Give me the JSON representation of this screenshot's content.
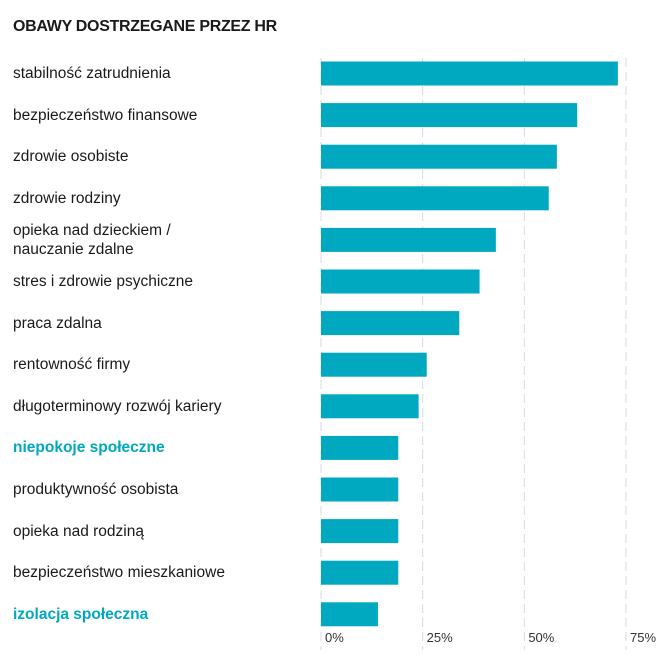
{
  "chart_data": {
    "type": "bar",
    "orientation": "horizontal",
    "title": "OBAWY DOSTRZEGANE PRZEZ HR",
    "categories": [
      "stabilność zatrudnienia",
      "bezpieczeństwo finansowe",
      "zdrowie osobiste",
      "zdrowie rodziny",
      "opieka nad dzieckiem / nauczanie zdalne",
      "stres i zdrowie psychiczne",
      "praca zdalna",
      "rentowność firmy",
      "długoterminowy rozwój kariery",
      "niepokoje społeczne",
      "produktywność osobista",
      "opieka nad rodziną",
      "bezpieczeństwo mieszkaniowe",
      "izolacja społeczna"
    ],
    "highlighted": [
      false,
      false,
      false,
      false,
      false,
      false,
      false,
      false,
      false,
      true,
      false,
      false,
      false,
      true
    ],
    "values": [
      73,
      63,
      58,
      56,
      43,
      39,
      34,
      26,
      24,
      19,
      19,
      19,
      19,
      14
    ],
    "xlim": [
      0,
      75
    ],
    "xticks": [
      "0%",
      "25%",
      "50%",
      "75%"
    ],
    "grid": true,
    "bar_color": "#00a9bf",
    "highlight_color": "#00a9bf"
  }
}
